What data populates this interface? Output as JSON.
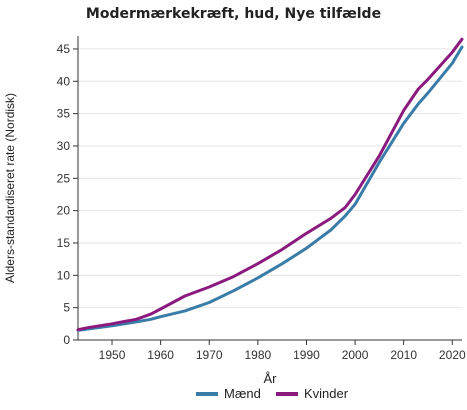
{
  "chart_data": {
    "type": "line",
    "title": "Modermærkekræft, hud, Nye tilfælde",
    "xlabel": "År",
    "ylabel": "Alders-standardiseret rate (Nordisk)",
    "xlim": [
      1943,
      2022
    ],
    "ylim": [
      0,
      47
    ],
    "xticks": [
      1950,
      1960,
      1970,
      1980,
      1990,
      2000,
      2010,
      2020
    ],
    "yticks": [
      0,
      5,
      10,
      15,
      20,
      25,
      30,
      35,
      40,
      45
    ],
    "grid": "horizontal",
    "legend": "bottom",
    "x": [
      1943,
      1945,
      1950,
      1955,
      1958,
      1960,
      1965,
      1970,
      1975,
      1980,
      1985,
      1990,
      1995,
      1998,
      2000,
      2005,
      2010,
      2013,
      2015,
      2020,
      2022
    ],
    "series": [
      {
        "name": "Mænd",
        "color": "#3a7ca8",
        "values": [
          1.5,
          1.7,
          2.2,
          2.8,
          3.2,
          3.6,
          4.5,
          5.8,
          7.6,
          9.6,
          11.8,
          14.2,
          17.0,
          19.2,
          21.0,
          27.5,
          33.5,
          36.5,
          38.2,
          42.8,
          45.3
        ]
      },
      {
        "name": "Kvinder",
        "color": "#8b1a7e",
        "values": [
          1.6,
          1.9,
          2.5,
          3.2,
          4.0,
          4.8,
          6.8,
          8.2,
          9.8,
          11.8,
          14.0,
          16.5,
          18.8,
          20.5,
          22.5,
          28.5,
          35.5,
          38.8,
          40.3,
          44.5,
          46.5
        ]
      }
    ]
  }
}
